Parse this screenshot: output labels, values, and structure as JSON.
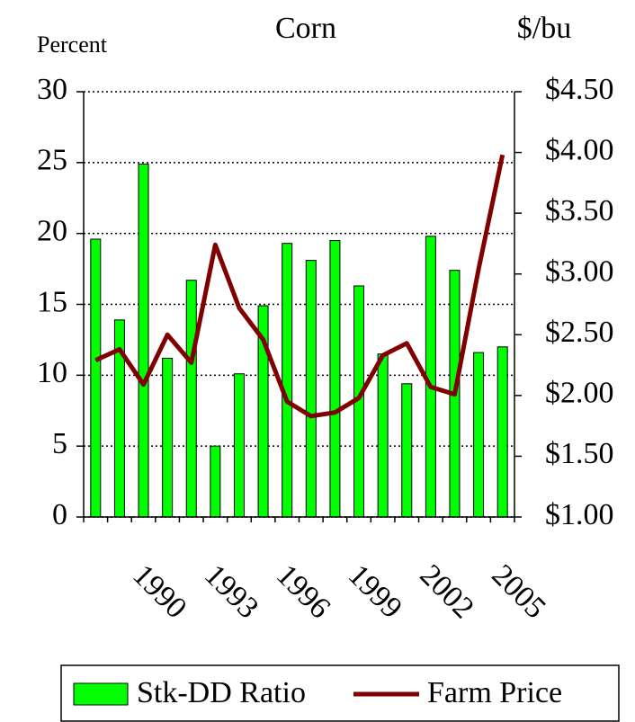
{
  "chart_data": {
    "type": "bar_line",
    "title": "Corn",
    "y_label": "Percent",
    "y2_label": "$/bu",
    "categories": [
      null,
      null,
      "1990",
      null,
      null,
      "1993",
      null,
      null,
      "1996",
      null,
      null,
      "1999",
      null,
      null,
      "2002",
      null,
      null,
      "2005"
    ],
    "series": [
      {
        "name": "Stk-DD Ratio",
        "type": "bar",
        "color": "#00ff00",
        "values": [
          19.6,
          13.9,
          24.9,
          11.2,
          16.7,
          5.0,
          10.1,
          14.9,
          19.3,
          18.1,
          19.5,
          16.3,
          11.5,
          9.4,
          19.8,
          17.4,
          11.6,
          12.0
        ]
      },
      {
        "name": "Farm Price",
        "type": "line",
        "axis": "y2",
        "color": "#800000",
        "values": [
          2.29,
          2.38,
          2.09,
          2.5,
          2.27,
          3.24,
          2.72,
          2.46,
          1.95,
          1.83,
          1.86,
          1.98,
          2.33,
          2.43,
          2.07,
          2.01,
          3.04,
          3.98
        ]
      }
    ],
    "ylim": [
      0,
      30
    ],
    "yticks": [
      0,
      5,
      10,
      15,
      20,
      25,
      30
    ],
    "y2lim": [
      1,
      4.5
    ],
    "y2ticks": [
      {
        "value": 1,
        "label": "$1.00"
      },
      {
        "value": 1.5,
        "label": "$1.50"
      },
      {
        "value": 2,
        "label": "$2.00"
      },
      {
        "value": 2.5,
        "label": "$2.50"
      },
      {
        "value": 3,
        "label": "$3.00"
      },
      {
        "value": 3.5,
        "label": "$3.50"
      },
      {
        "value": 4,
        "label": "$4.00"
      },
      {
        "value": 4.5,
        "label": "$4.50"
      }
    ],
    "grid": true,
    "legend": "bottom"
  }
}
